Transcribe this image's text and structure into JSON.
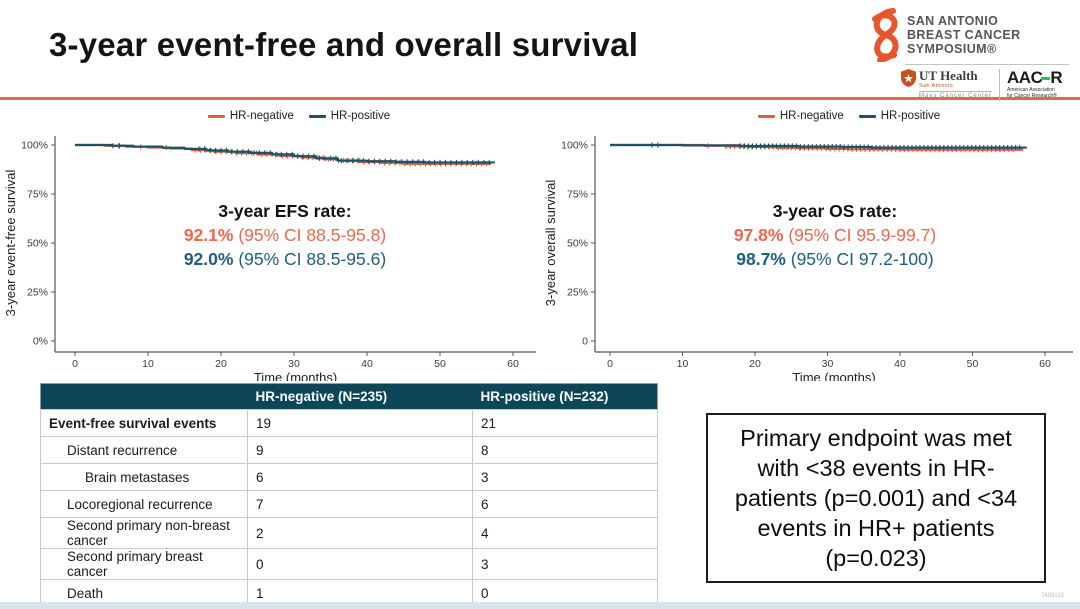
{
  "slide": {
    "title": "3-year event-free and overall survival",
    "footnote": "2409110"
  },
  "colors": {
    "accent_orange": "#E8673F",
    "curve_orange": "#E55A33",
    "curve_teal": "#1C5168",
    "text_orange": "#F26549",
    "text_blue": "#1E5E80",
    "table_header_bg": "#0E4659",
    "bottom_bar": "#D9E4EA",
    "ribbon_orange": "#E8552D",
    "ut_shield_orange": "#C8511C",
    "aacr_green": "#3DB94E"
  },
  "logos": {
    "sabcs": {
      "line1": "SAN ANTONIO",
      "line2": "BREAST CANCER",
      "line3": "SYMPOSIUM®"
    },
    "ut_health": {
      "name": "UT Health",
      "campus": "San Antonio",
      "center": "Mays Cancer Center"
    },
    "aacr": {
      "word_left": "AAC",
      "word_right": "R",
      "tag1": "American Association",
      "tag2": "for Cancer Research®"
    }
  },
  "chart_data": [
    {
      "type": "line",
      "kind": "kaplan-meier-step",
      "xlabel": "Time (months)",
      "ylabel": "3-year event-free survival",
      "xticks": [
        0,
        10,
        20,
        30,
        40,
        50,
        60
      ],
      "ytick_labels": [
        "0%",
        "25%",
        "50%",
        "75%",
        "100%"
      ],
      "xlim": [
        0,
        62
      ],
      "ylim": [
        0,
        100
      ],
      "grid": false,
      "legend_position": "top-center",
      "legend": [
        {
          "label": "HR-negative",
          "color": "#E55A33"
        },
        {
          "label": "HR-positive",
          "color": "#1C5168"
        }
      ],
      "annotation": {
        "heading": "3-year EFS rate:",
        "lines": [
          {
            "value": "92.1%",
            "ci": " (95% CI 88.5-95.8)",
            "group": "HR-negative"
          },
          {
            "value": "92.0%",
            "ci": " (95% CI 88.5-95.6)",
            "group": "HR-positive"
          }
        ]
      },
      "series": [
        {
          "name": "HR-negative",
          "color": "#E55A33",
          "curve_end": 57,
          "points": [
            [
              0,
              100
            ],
            [
              4,
              99.6
            ],
            [
              7,
              99.1
            ],
            [
              10,
              98.7
            ],
            [
              13,
              98.2
            ],
            [
              16,
              97.4
            ],
            [
              19,
              96.6
            ],
            [
              22,
              95.9
            ],
            [
              25,
              95.2
            ],
            [
              28,
              94.4
            ],
            [
              31,
              93.6
            ],
            [
              34,
              92.8
            ],
            [
              36,
              92.1
            ],
            [
              39,
              91.4
            ],
            [
              42,
              90.9
            ],
            [
              45,
              90.4
            ]
          ],
          "censoring": {
            "sparse": [
              6,
              9,
              12.5
            ],
            "dense": [
              16.5,
              56.5,
              0.7
            ]
          }
        },
        {
          "name": "HR-positive",
          "color": "#1C5168",
          "curve_end": 57.5,
          "points": [
            [
              0,
              100
            ],
            [
              5,
              99.6
            ],
            [
              8,
              99.2
            ],
            [
              12,
              98.6
            ],
            [
              15,
              98.0
            ],
            [
              18,
              97.2
            ],
            [
              21,
              96.6
            ],
            [
              24,
              96.0
            ],
            [
              27,
              95.2
            ],
            [
              30,
              94.3
            ],
            [
              33,
              93.2
            ],
            [
              36,
              92.0
            ],
            [
              40,
              91.7
            ],
            [
              44,
              91.4
            ],
            [
              48,
              91.1
            ]
          ],
          "censoring": {
            "sparse": [
              5.2,
              6.1
            ],
            "dense": [
              17,
              57,
              0.75
            ]
          }
        }
      ]
    },
    {
      "type": "line",
      "kind": "kaplan-meier-step",
      "xlabel": "Time (months)",
      "ylabel": "3-year overall survival",
      "xticks": [
        0,
        10,
        20,
        30,
        40,
        50,
        60
      ],
      "ytick_labels": [
        "0",
        "25%",
        "50%",
        "75%",
        "100%"
      ],
      "xlim": [
        0,
        62
      ],
      "ylim": [
        0,
        100
      ],
      "grid": false,
      "legend_position": "top-center",
      "legend": [
        {
          "label": "HR-negative",
          "color": "#E55A33"
        },
        {
          "label": "HR-positive",
          "color": "#1C5168"
        }
      ],
      "annotation": {
        "heading": "3-year OS rate:",
        "lines": [
          {
            "value": "97.8%",
            "ci": " (95% CI 95.9-99.7)",
            "group": "HR-negative"
          },
          {
            "value": "98.7%",
            "ci": " (95% CI 97.2-100)",
            "group": "HR-positive"
          }
        ]
      },
      "series": [
        {
          "name": "HR-negative",
          "color": "#E55A33",
          "curve_end": 57,
          "points": [
            [
              0,
              100
            ],
            [
              13,
              99.6
            ],
            [
              16,
              99.3
            ],
            [
              19,
              99.0
            ],
            [
              23,
              98.6
            ],
            [
              26,
              98.3
            ],
            [
              30,
              98.0
            ],
            [
              33,
              97.8
            ],
            [
              40,
              97.6
            ]
          ],
          "censoring": {
            "sparse": [
              13.5
            ],
            "dense": [
              16,
              56,
              0.6
            ]
          }
        },
        {
          "name": "HR-positive",
          "color": "#1C5168",
          "curve_end": 57.5,
          "points": [
            [
              0,
              100
            ],
            [
              10,
              99.8
            ],
            [
              18,
              99.5
            ],
            [
              26,
              99.2
            ],
            [
              32,
              99.0
            ],
            [
              36,
              98.7
            ]
          ],
          "censoring": {
            "sparse": [
              5.8,
              6.6
            ],
            "dense": [
              18,
              57,
              0.55
            ]
          }
        }
      ]
    }
  ],
  "table": {
    "headers": [
      "",
      "HR-negative (N=235)",
      "HR-positive (N=232)"
    ],
    "rows": [
      {
        "label": "Event-free survival events",
        "indent": 0,
        "bold": true,
        "neg": "19",
        "pos": "21"
      },
      {
        "label": "Distant recurrence",
        "indent": 1,
        "bold": false,
        "neg": "9",
        "pos": "8"
      },
      {
        "label": "Brain metastases",
        "indent": 2,
        "bold": false,
        "neg": "6",
        "pos": "3"
      },
      {
        "label": "Locoregional recurrence",
        "indent": 1,
        "bold": false,
        "neg": "7",
        "pos": "6"
      },
      {
        "label": "Second primary non-breast cancer",
        "indent": 1,
        "bold": false,
        "neg": "2",
        "pos": "4"
      },
      {
        "label": "Second primary breast cancer",
        "indent": 1,
        "bold": false,
        "neg": "0",
        "pos": "3"
      },
      {
        "label": "Death",
        "indent": 1,
        "bold": false,
        "neg": "1",
        "pos": "0"
      }
    ]
  },
  "endpoint_box": {
    "lines": [
      "Primary endpoint was met",
      "with <38 events in HR-",
      "patients (p=0.001) and <34",
      "events in HR+ patients",
      "(p=0.023)"
    ]
  }
}
